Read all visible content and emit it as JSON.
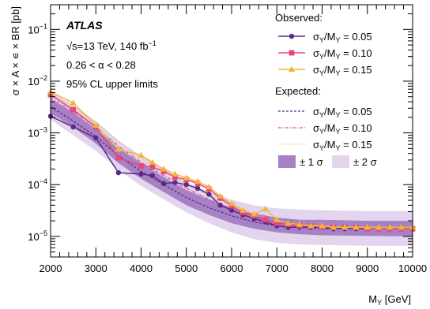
{
  "chart_data": {
    "type": "line",
    "xlabel": "M",
    "xlabel_sub": "Y",
    "xlabel_unit": " [GeV]",
    "ylabel": "σ × A × ∊ × BR [pb]",
    "y_scale": "log",
    "xlim": [
      2000,
      10000
    ],
    "ylim": [
      4e-06,
      0.3
    ],
    "x_ticks": [
      2000,
      3000,
      4000,
      5000,
      6000,
      7000,
      8000,
      9000,
      10000
    ],
    "x_tick_labels": [
      "2000",
      "3000",
      "4000",
      "5000",
      "6000",
      "7000",
      "8000",
      "9000",
      "10000"
    ],
    "y_ticks": [
      1e-05,
      0.0001,
      0.001,
      0.01,
      0.1
    ],
    "y_tick_labels": [
      {
        "base": "10",
        "exp": "−5"
      },
      {
        "base": "10",
        "exp": "−4"
      },
      {
        "base": "10",
        "exp": "−3"
      },
      {
        "base": "10",
        "exp": "−2"
      },
      {
        "base": "10",
        "exp": "−1"
      }
    ],
    "annotations": {
      "experiment": "ATLAS",
      "energy_prefix": "√s=13 TeV, 140 fb",
      "energy_sup": "−1",
      "alpha_range": "0.26 < α < 0.28",
      "limits": "95% CL upper limits"
    },
    "legend": {
      "placement": "top-right",
      "observed_header": "Observed:",
      "expected_header": "Expected:",
      "band1": "± 1 σ",
      "band2": "± 2 σ"
    },
    "series_label": {
      "symbol": "σ",
      "sub_a": "Y",
      "mid": "/M",
      "sub_b": "Y"
    },
    "observed": [
      {
        "name_value": " = 0.05",
        "color": "#5b2a86",
        "marker": "circle",
        "x": [
          2000,
          2500,
          3000,
          3500,
          4000,
          4250,
          4500,
          4750,
          5000,
          5250,
          5500,
          5750,
          6000,
          6250,
          6500,
          6750,
          7000,
          7250,
          7500,
          7750,
          8000,
          8250,
          8500,
          8750,
          9000,
          9250,
          9500,
          9750,
          10000
        ],
        "y": [
          0.0021,
          0.0013,
          0.0008,
          0.00017,
          0.00016,
          0.00015,
          0.000105,
          0.00011,
          0.0001,
          8.5e-05,
          6.5e-05,
          4e-05,
          3.2e-05,
          2.6e-05,
          2.2e-05,
          1.9e-05,
          1.6e-05,
          1.5e-05,
          1.5e-05,
          1.5e-05,
          1.5e-05,
          1.4e-05,
          1.4e-05,
          1.4e-05,
          1.4e-05,
          1.4e-05,
          1.4e-05,
          1.4e-05,
          1.4e-05
        ]
      },
      {
        "name_value": " = 0.10",
        "color": "#e8457a",
        "marker": "square",
        "x": [
          2000,
          2500,
          3000,
          3500,
          4000,
          4250,
          4500,
          4750,
          5000,
          5250,
          5500,
          5750,
          6000,
          6250,
          6500,
          6750,
          7000,
          7250,
          7500,
          7750,
          8000,
          8250,
          8500,
          8750,
          9000,
          9250,
          9500,
          9750,
          10000
        ],
        "y": [
          0.0055,
          0.0028,
          0.0013,
          0.00033,
          0.00023,
          0.00022,
          0.00018,
          0.00014,
          0.000125,
          0.000105,
          8.2e-05,
          5.5e-05,
          3.9e-05,
          2.9e-05,
          2.5e-05,
          2.1e-05,
          1.8e-05,
          1.7e-05,
          1.6e-05,
          1.6e-05,
          1.5e-05,
          1.5e-05,
          1.5e-05,
          1.5e-05,
          1.4e-05,
          1.4e-05,
          1.4e-05,
          1.4e-05,
          1.4e-05
        ]
      },
      {
        "name_value": " = 0.15",
        "color": "#f0b63c",
        "marker": "triangle",
        "x": [
          2000,
          2500,
          3000,
          3500,
          4000,
          4250,
          4500,
          4750,
          5000,
          5250,
          5500,
          5750,
          6000,
          6250,
          6500,
          6750,
          7000,
          7250,
          7500,
          7750,
          8000,
          8250,
          8500,
          8750,
          9000,
          9250,
          9500,
          9750,
          10000
        ],
        "y": [
          0.0062,
          0.0038,
          0.0014,
          0.00048,
          0.00037,
          0.00027,
          0.0002,
          0.00016,
          0.000135,
          0.000115,
          9e-05,
          6e-05,
          4.3e-05,
          3.2e-05,
          2.7e-05,
          3.4e-05,
          2.1e-05,
          1.8e-05,
          1.7e-05,
          1.6e-05,
          1.6e-05,
          1.5e-05,
          1.5e-05,
          1.5e-05,
          1.5e-05,
          1.5e-05,
          1.5e-05,
          1.5e-05,
          1.5e-05
        ]
      }
    ],
    "expected": [
      {
        "name_value": " = 0.05",
        "color": "#5b2a86",
        "dash": "3,2",
        "x": [
          2000,
          2500,
          3000,
          3500,
          4000,
          4500,
          5000,
          5500,
          6000,
          6500,
          7000,
          7500,
          8000,
          9000,
          10000
        ],
        "y": [
          0.0032,
          0.0017,
          0.00085,
          0.00036,
          0.00018,
          0.0001,
          5.6e-05,
          3.6e-05,
          2.5e-05,
          1.9e-05,
          1.6e-05,
          1.5e-05,
          1.4e-05,
          1.4e-05,
          1.4e-05
        ]
      },
      {
        "name_value": " = 0.10",
        "color": "#e8457a",
        "dash": "4,2,1,2",
        "x": [
          2000,
          2500,
          3000,
          3500,
          4000,
          4500,
          5000,
          5500,
          6000,
          6500,
          7000,
          7500,
          8000,
          9000,
          10000
        ],
        "y": [
          0.0048,
          0.0026,
          0.0013,
          0.00055,
          0.00027,
          0.00015,
          8.5e-05,
          5.2e-05,
          3.3e-05,
          2.3e-05,
          1.8e-05,
          1.6e-05,
          1.5e-05,
          1.4e-05,
          1.4e-05
        ]
      },
      {
        "name_value": " = 0.15",
        "color": "#f0b63c",
        "dash": "1,2",
        "x": [
          2000,
          2500,
          3000,
          3500,
          4000,
          4500,
          5000,
          5500,
          6000,
          6500,
          7000,
          7500,
          8000,
          9000,
          10000
        ],
        "y": [
          0.0058,
          0.0032,
          0.0016,
          0.00068,
          0.00033,
          0.00018,
          0.0001,
          6.2e-05,
          4e-05,
          2.7e-05,
          2e-05,
          1.7e-05,
          1.6e-05,
          1.5e-05,
          1.5e-05
        ]
      }
    ],
    "bands": {
      "x": [
        2000,
        2500,
        3000,
        3500,
        4000,
        4500,
        5000,
        5500,
        6000,
        6500,
        7000,
        7500,
        8000,
        9000,
        10000
      ],
      "minus2": [
        0.0018,
        0.0009,
        0.00045,
        0.00019,
        9.5e-05,
        5.2e-05,
        2.9e-05,
        1.8e-05,
        1.2e-05,
        8.8e-06,
        7.5e-06,
        7e-06,
        6.8e-06,
        6.6e-06,
        6.6e-06
      ],
      "minus1": [
        0.0024,
        0.0013,
        0.00062,
        0.00026,
        0.00013,
        7.2e-05,
        4e-05,
        2.6e-05,
        1.8e-05,
        1.4e-05,
        1.2e-05,
        1.1e-05,
        1.05e-05,
        1.02e-05,
        1e-05
      ],
      "plus1": [
        0.0045,
        0.0025,
        0.0012,
        0.00051,
        0.00026,
        0.00014,
        7.9e-05,
        5.1e-05,
        3.6e-05,
        2.8e-05,
        2.3e-05,
        2.1e-05,
        2.1e-05,
        2e-05,
        2e-05
      ],
      "plus2": [
        0.0062,
        0.0035,
        0.0017,
        0.00071,
        0.00036,
        0.0002,
        0.000112,
        7.2e-05,
        5.1e-05,
        4e-05,
        3.5e-05,
        3.3e-05,
        3.2e-05,
        3.1e-05,
        3.1e-05
      ],
      "color1": "#a681c4",
      "color2": "#e3d5ee"
    }
  }
}
